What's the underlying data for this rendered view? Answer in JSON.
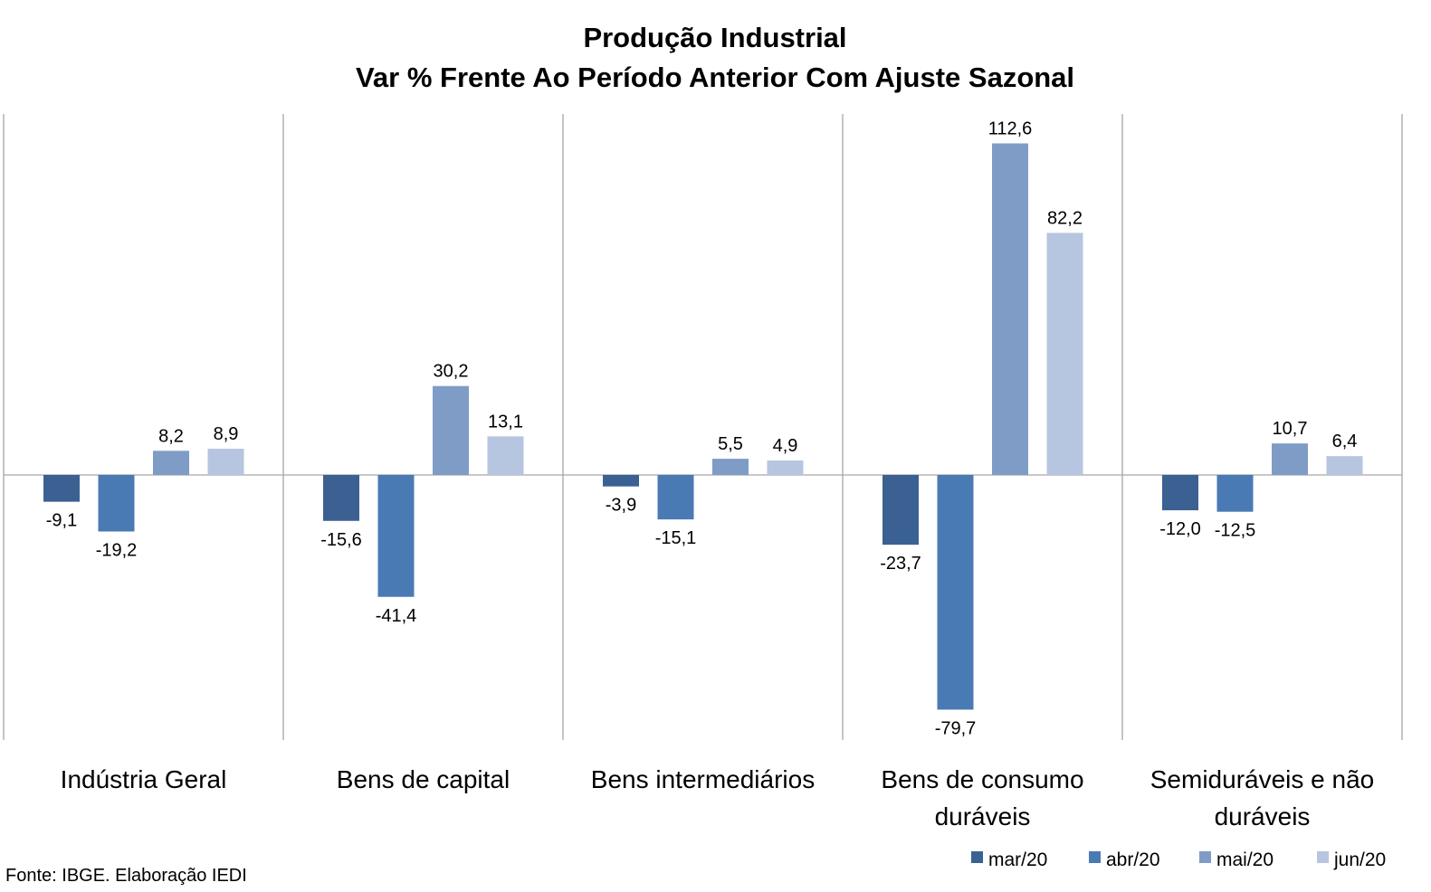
{
  "chart_data": {
    "type": "bar",
    "title": "Produção Industrial",
    "subtitle": "Var % Frente Ao Período Anterior Com Ajuste Sazonal",
    "categories": [
      [
        "Indústria Geral"
      ],
      [
        "Bens de capital"
      ],
      [
        "Bens intermediários"
      ],
      [
        "Bens de consumo",
        "duráveis"
      ],
      [
        "Semiduráveis e não",
        "duráveis"
      ]
    ],
    "series": [
      {
        "name": "mar/20",
        "color": "#3b6193",
        "values": [
          -9.1,
          -15.6,
          -3.9,
          -23.7,
          -12.0
        ],
        "labels": [
          "-9,1",
          "-15,6",
          "-3,9",
          "-23,7",
          "-12,0"
        ]
      },
      {
        "name": "abr/20",
        "color": "#4a7ab4",
        "values": [
          -19.2,
          -41.4,
          -15.1,
          -79.7,
          -12.5
        ],
        "labels": [
          "-19,2",
          "-41,4",
          "-15,1",
          "-79,7",
          "-12,5"
        ]
      },
      {
        "name": "mai/20",
        "color": "#7f9cc6",
        "values": [
          8.2,
          30.2,
          5.5,
          112.6,
          10.7
        ],
        "labels": [
          "8,2",
          "30,2",
          "5,5",
          "112,6",
          "10,7"
        ]
      },
      {
        "name": "jun/20",
        "color": "#b6c5e0",
        "values": [
          8.9,
          13.1,
          4.9,
          82.2,
          6.4
        ],
        "labels": [
          "8,9",
          "13,1",
          "4,9",
          "82,2",
          "6,4"
        ]
      }
    ],
    "ylim": [
      -90,
      122
    ],
    "grid": false,
    "legend_position": "bottom-right"
  },
  "source": "Fonte: IBGE. Elaboração IEDI"
}
